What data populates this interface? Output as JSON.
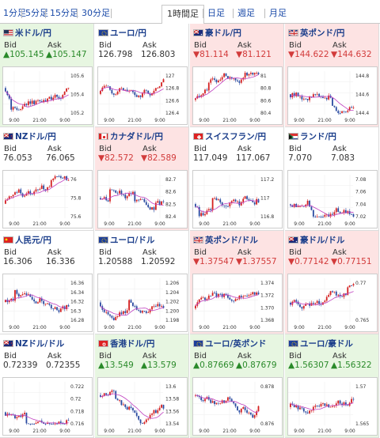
{
  "tabs": [
    {
      "label": "1分足"
    },
    {
      "label": "5分足"
    },
    {
      "label": "15分足"
    },
    {
      "label": "30分足"
    },
    {
      "label": "1時間足",
      "active": true
    },
    {
      "label": "日足"
    },
    {
      "label": "週足"
    },
    {
      "label": "月足"
    }
  ],
  "bid_label": "Bid",
  "ask_label": "Ask",
  "xticks": [
    "9:00",
    "21:00",
    "9:00"
  ],
  "colors": {
    "up": "#2a8a2a",
    "down": "#d23b3b",
    "candle_up": "#d42020",
    "candle_down": "#2a4aa0",
    "ma": "#c040c0"
  },
  "pairs": [
    {
      "name": "米ドル/円",
      "flag": "us",
      "dir": "up",
      "bid": "▲105.145",
      "ask": "▲105.147",
      "yticks": [
        "105.6",
        "105.4",
        "105.2"
      ],
      "seed": 3
    },
    {
      "name": "ユーロ/円",
      "flag": "eu",
      "dir": "flat",
      "bid": "126.798",
      "ask": "126.803",
      "yticks": [
        "127",
        "126.8",
        "126.6",
        "126.4"
      ],
      "seed": 7
    },
    {
      "name": "豪ドル/円",
      "flag": "au",
      "dir": "down",
      "bid": "▼81.114",
      "ask": "▼81.121",
      "yticks": [
        "81",
        "80.8",
        "80.6",
        "80.4"
      ],
      "seed": 11
    },
    {
      "name": "英ポンド/円",
      "flag": "uk",
      "dir": "down",
      "bid": "▼144.622",
      "ask": "▼144.632",
      "yticks": [
        "144.8",
        "144.6",
        "144.4"
      ],
      "seed": 13
    },
    {
      "name": "NZドル/円",
      "flag": "nz",
      "dir": "flat",
      "bid": "76.053",
      "ask": "76.065",
      "yticks": [
        "76",
        "75.8",
        "75.6"
      ],
      "seed": 17
    },
    {
      "name": "カナダドル/円",
      "flag": "ca",
      "dir": "down",
      "bid": "▼82.572",
      "ask": "▼82.589",
      "yticks": [
        "82.7",
        "82.6",
        "82.5",
        "82.4"
      ],
      "seed": 19
    },
    {
      "name": "スイスフラン/円",
      "flag": "ch",
      "dir": "flat",
      "bid": "117.049",
      "ask": "117.067",
      "yticks": [
        "117.2",
        "117",
        "116.8"
      ],
      "seed": 23
    },
    {
      "name": "ランド/円",
      "flag": "za",
      "dir": "flat",
      "bid": "7.070",
      "ask": "7.083",
      "yticks": [
        "7.08",
        "7.06",
        "7.04",
        "7.02"
      ],
      "seed": 29
    },
    {
      "name": "人民元/円",
      "flag": "cn",
      "dir": "flat",
      "bid": "16.306",
      "ask": "16.336",
      "yticks": [
        "16.36",
        "16.34",
        "16.32",
        "16.3",
        "16.28"
      ],
      "seed": 31
    },
    {
      "name": "ユーロ/ドル",
      "flag": "eu",
      "dir": "flat",
      "bid": "1.20588",
      "ask": "1.20592",
      "yticks": [
        "1.206",
        "1.204",
        "1.202",
        "1.200",
        "1.198"
      ],
      "seed": 37
    },
    {
      "name": "英ポンド/ドル",
      "flag": "uk",
      "dir": "down",
      "bid": "▼1.37547",
      "ask": "▼1.37557",
      "yticks": [
        "1.374",
        "1.372",
        "1.370",
        "1.368"
      ],
      "seed": 41
    },
    {
      "name": "豪ドル/ドル",
      "flag": "au",
      "dir": "down",
      "bid": "▼0.77142",
      "ask": "▼0.77151",
      "yticks": [
        "0.77",
        "0.765"
      ],
      "seed": 43
    },
    {
      "name": "NZドル/ドル",
      "flag": "nz",
      "dir": "flat",
      "bid": "0.72339",
      "ask": "0.72355",
      "yticks": [
        "0.722",
        "0.72",
        "0.718",
        "0.716"
      ],
      "seed": 47
    },
    {
      "name": "香港ドル/円",
      "flag": "hk",
      "dir": "up",
      "bid": "▲13.549",
      "ask": "▲13.579",
      "yticks": [
        "13.6",
        "13.58",
        "13.56",
        "13.54"
      ],
      "seed": 53
    },
    {
      "name": "ユーロ/英ポンド",
      "flag": "eu",
      "dir": "up",
      "bid": "▲0.87669",
      "ask": "▲0.87679",
      "yticks": [
        "0.878",
        "0.876"
      ],
      "seed": 59
    },
    {
      "name": "ユーロ/豪ドル",
      "flag": "eu",
      "dir": "up",
      "bid": "▲1.56307",
      "ask": "▲1.56322",
      "yticks": [
        "1.57",
        "1.565"
      ],
      "seed": 61
    }
  ]
}
